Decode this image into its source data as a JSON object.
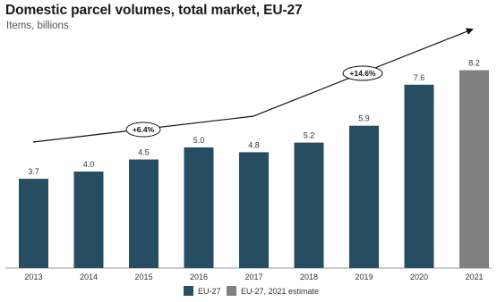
{
  "chart_data": {
    "type": "bar",
    "title": "Domestic parcel volumes, total market, EU-27",
    "subtitle": "Items, billions",
    "categories": [
      "2013",
      "2014",
      "2015",
      "2016",
      "2017",
      "2018",
      "2019",
      "2020",
      "2021"
    ],
    "values": [
      3.7,
      4.0,
      4.5,
      5.0,
      4.8,
      5.2,
      5.9,
      7.6,
      8.2
    ],
    "value_labels": [
      "3.7",
      "4.0",
      "4.5",
      "5.0",
      "4.8",
      "5.2",
      "5.9",
      "7.6",
      "8.2"
    ],
    "estimate_flags": [
      false,
      false,
      false,
      false,
      false,
      false,
      false,
      false,
      true
    ],
    "series": [
      {
        "name": "EU-27",
        "color": "#274d63"
      },
      {
        "name": "EU-27, 2021 estimate",
        "color": "#808080"
      }
    ],
    "growth_annotations": [
      {
        "label": "+6.4%",
        "from": "2013",
        "to": "2017"
      },
      {
        "label": "+14.6%",
        "from": "2017",
        "to": "2021"
      }
    ],
    "ylim": [
      0,
      8.6
    ],
    "grid": false,
    "legend": "bottom-center"
  }
}
